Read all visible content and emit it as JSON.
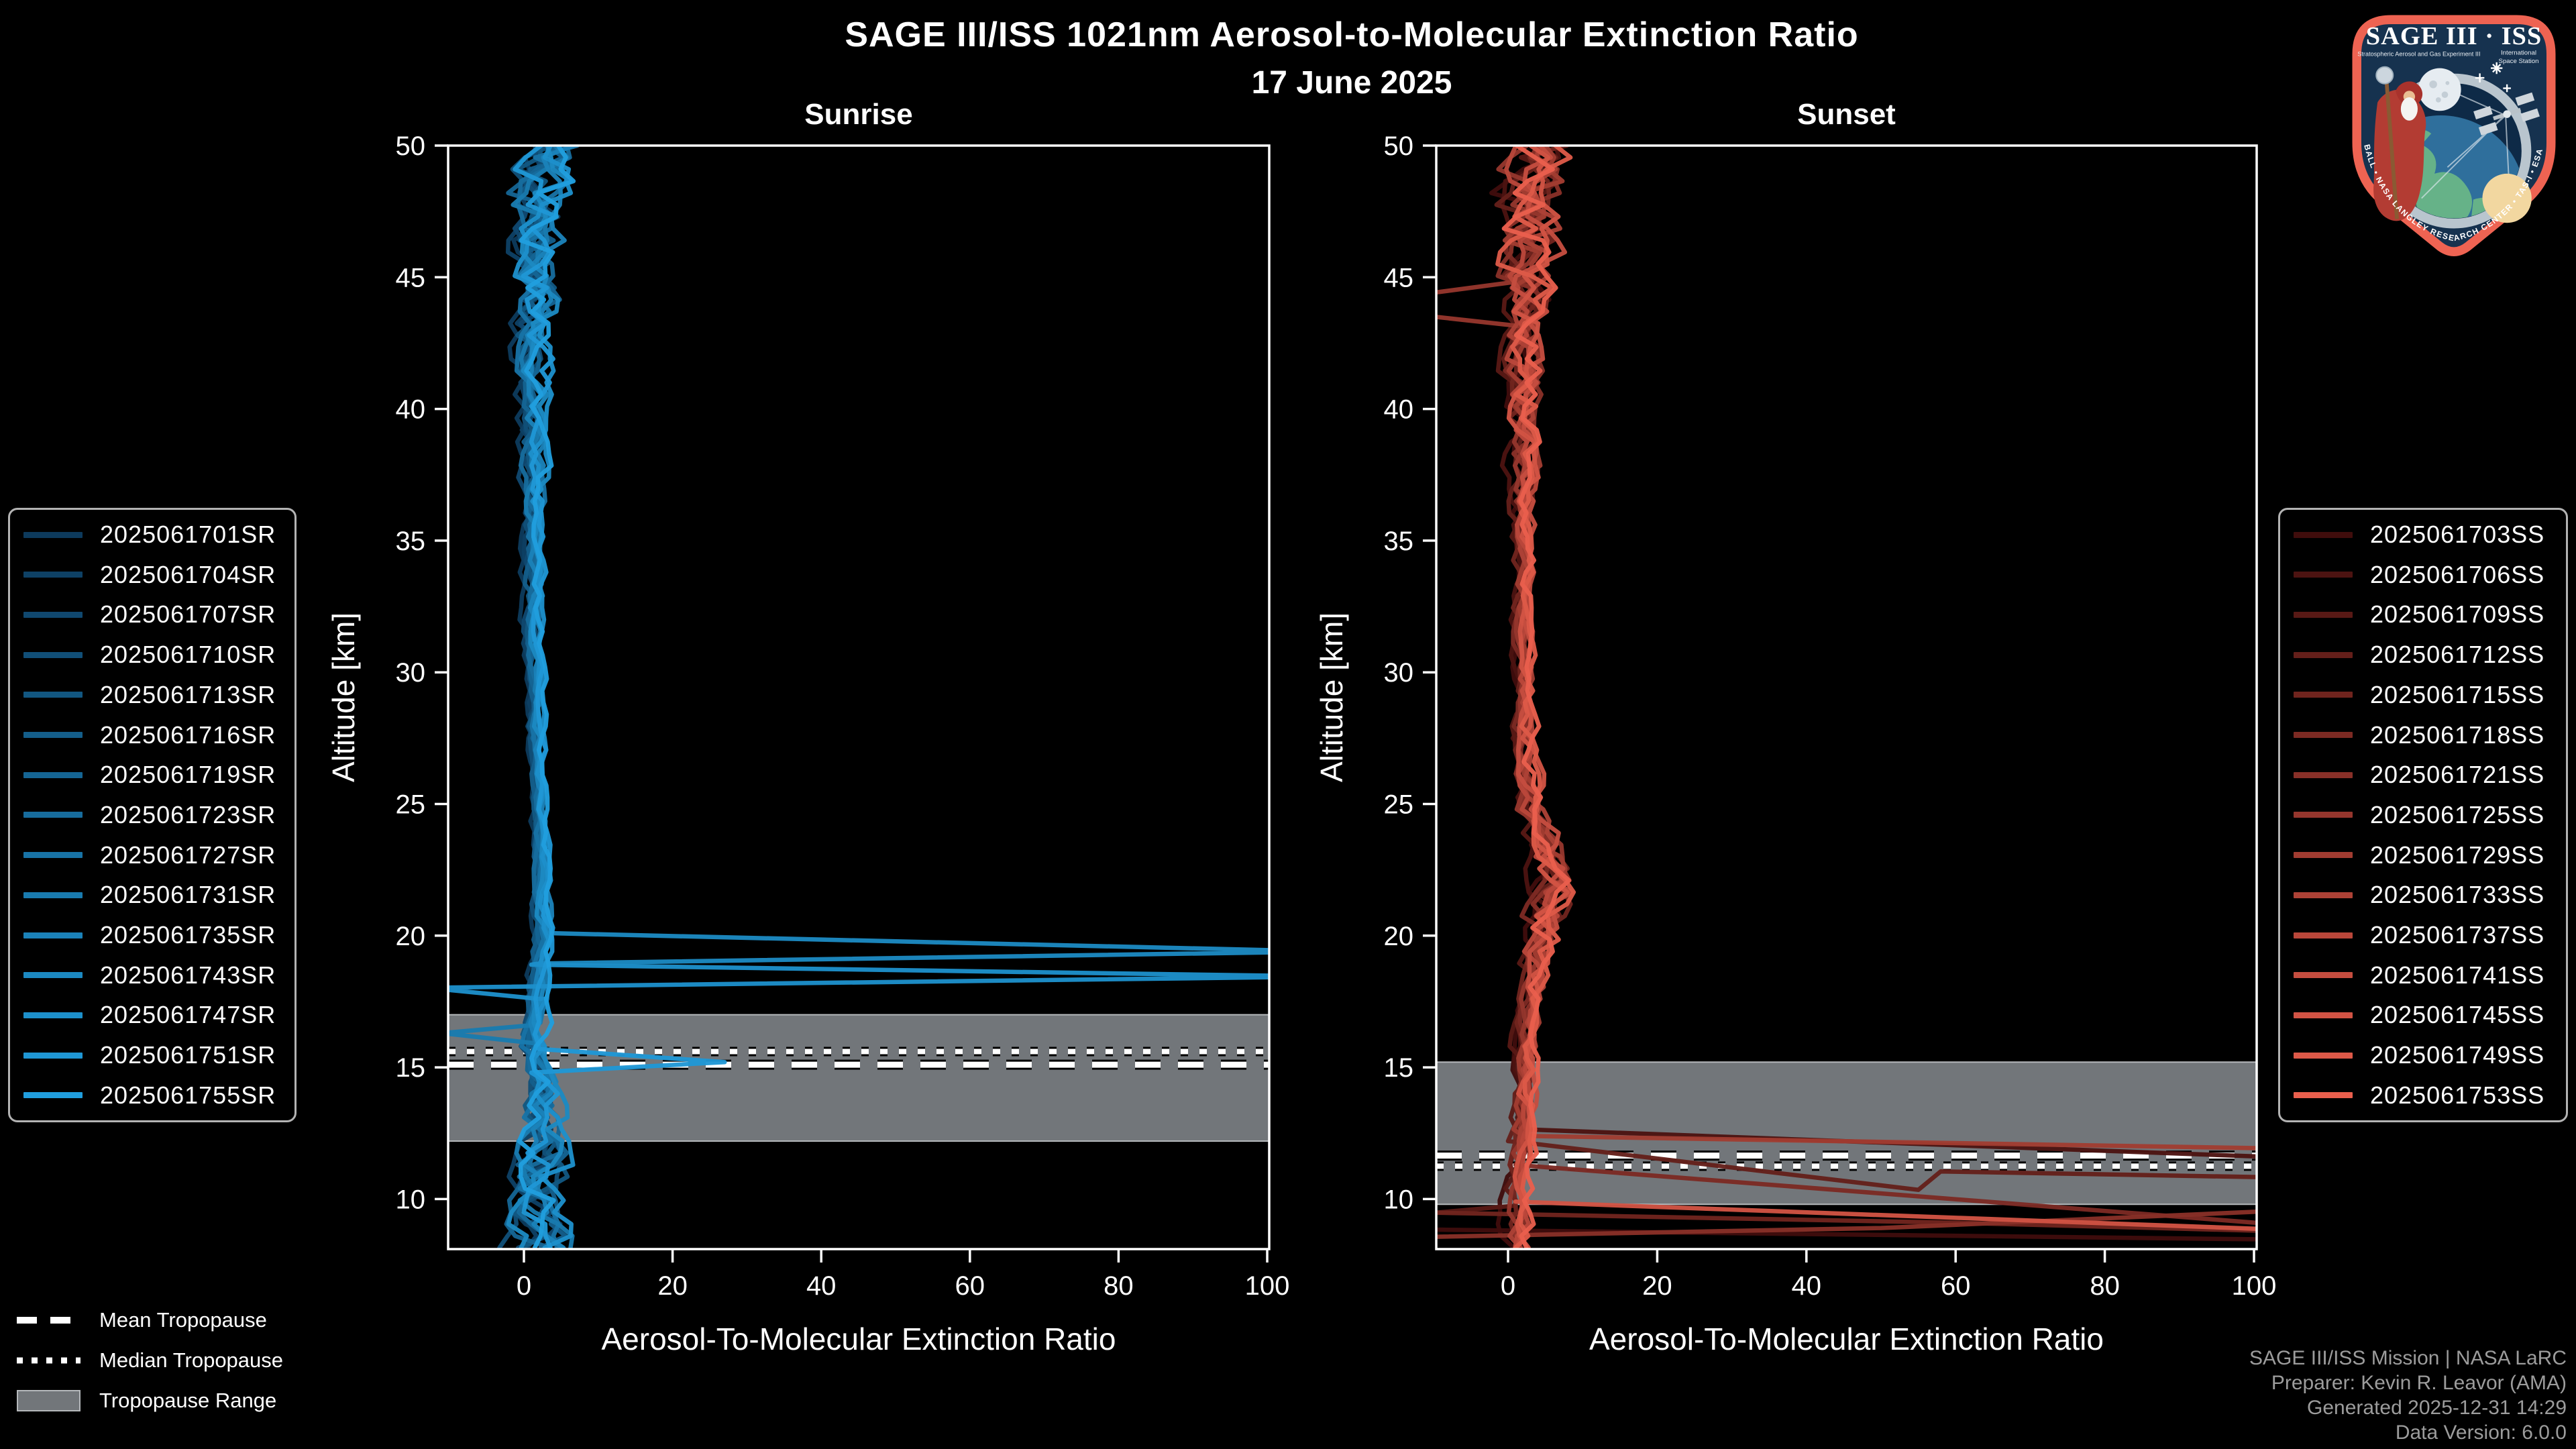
{
  "title": "SAGE III/ISS 1021nm Aerosol-to-Molecular Extinction Ratio",
  "subtitle": "17 June 2025",
  "logo": {
    "title": "SAGE III · ISS",
    "subtitle_left": "Stratospheric Aerosol and Gas Experiment III",
    "subtitle_right_line1": "International",
    "subtitle_right_line2": "Space Station",
    "rim_text": "BALL • NASA LANGLEY RESEARCH CENTER • TAS-I • ESA"
  },
  "tropopause_legend": {
    "mean_label": "Mean Tropopause",
    "median_label": "Median Tropopause",
    "range_label": "Tropopause Range"
  },
  "footer": {
    "line1": "SAGE III/ISS Mission | NASA LaRC",
    "line2": "Preparer: Kevin R. Leavor (AMA)",
    "line3": "Generated 2025-12-31 14:29",
    "line4": "Data Version: 6.0.0"
  },
  "colors": {
    "background": "#000000",
    "axis": "#ffffff",
    "tropopause_band": "#72767a",
    "tropopause_band_edge": "#b5b8bb",
    "tropopause_line": "#ffffff",
    "footer_text": "#9c9c9c",
    "legend_border": "#b3b3b3"
  },
  "chart_data": {
    "type": "line",
    "xlabel": "Aerosol-To-Molecular Extinction Ratio",
    "ylabel": "Altitude [km]",
    "xticks": [
      0,
      20,
      40,
      60,
      80,
      100
    ],
    "yticks": [
      10,
      15,
      20,
      25,
      30,
      35,
      40,
      45,
      50
    ],
    "xlim": [
      -10.2,
      100.3
    ],
    "ylim": [
      8.1,
      50
    ],
    "grid": false,
    "panels": [
      {
        "id": "sunrise",
        "title": "Sunrise",
        "tropopause": {
          "mean_km": 15.1,
          "median_km": 15.6,
          "range_km": [
            12.2,
            17.0
          ]
        },
        "series": [
          {
            "name": "2025061701SR",
            "color": "#0d3a5c"
          },
          {
            "name": "2025061704SR",
            "color": "#0e4165"
          },
          {
            "name": "2025061707SR",
            "color": "#10486f"
          },
          {
            "name": "2025061710SR",
            "color": "#114f78"
          },
          {
            "name": "2025061713SR",
            "color": "#125781"
          },
          {
            "name": "2025061716SR",
            "color": "#145e8a"
          },
          {
            "name": "2025061719SR",
            "color": "#156594"
          },
          {
            "name": "2025061723SR",
            "color": "#176c9d"
          },
          {
            "name": "2025061727SR",
            "color": "#1873a6"
          },
          {
            "name": "2025061731SR",
            "color": "#197baf"
          },
          {
            "name": "2025061735SR",
            "color": "#1b82b9"
          },
          {
            "name": "2025061743SR",
            "color": "#1c89c2"
          },
          {
            "name": "2025061747SR",
            "color": "#1d90cb"
          },
          {
            "name": "2025061751SR",
            "color": "#1f97d5"
          },
          {
            "name": "2025061755SR",
            "color": "#209ede"
          }
        ],
        "profile": {
          "center": [
            [
              8,
              2
            ],
            [
              12,
              2
            ],
            [
              14,
              2
            ],
            [
              16,
              1.5
            ],
            [
              18,
              2
            ],
            [
              20,
              2.6
            ],
            [
              22,
              2.2
            ],
            [
              25,
              2
            ],
            [
              30,
              1.3
            ],
            [
              35,
              1.2
            ],
            [
              40,
              1.3
            ],
            [
              44,
              1.6
            ],
            [
              47,
              2
            ],
            [
              50,
              2
            ]
          ],
          "amp": [
            [
              8,
              4.2
            ],
            [
              11,
              3.6
            ],
            [
              13,
              3.1
            ],
            [
              15,
              1.8
            ],
            [
              17,
              1.2
            ],
            [
              20,
              1.0
            ],
            [
              25,
              0.8
            ],
            [
              30,
              0.8
            ],
            [
              35,
              1.0
            ],
            [
              40,
              1.8
            ],
            [
              44,
              3.0
            ],
            [
              47,
              4.0
            ],
            [
              50,
              4.6
            ]
          ]
        },
        "features": [
          {
            "series": 11,
            "points": [
              [
                3,
                20.1
              ],
              [
                108,
                19.4
              ],
              [
                4,
                18.95
              ]
            ]
          },
          {
            "series": 12,
            "points": [
              [
                1,
                18.9
              ],
              [
                108,
                18.45
              ],
              [
                -13,
                18.02
              ],
              [
                2,
                17.6
              ]
            ]
          },
          {
            "series": 13,
            "points": [
              [
                2,
                15.7
              ],
              [
                27,
                15.2
              ],
              [
                1,
                14.8
              ]
            ]
          },
          {
            "series": 9,
            "points": [
              [
                1,
                16.6
              ],
              [
                -11,
                16.3
              ],
              [
                2,
                15.9
              ]
            ]
          }
        ]
      },
      {
        "id": "sunset",
        "title": "Sunset",
        "tropopause": {
          "mean_km": 11.65,
          "median_km": 11.25,
          "range_km": [
            9.8,
            15.2
          ]
        },
        "series": [
          {
            "name": "2025061703SS",
            "color": "#400d0c"
          },
          {
            "name": "2025061706SS",
            "color": "#4c1311"
          },
          {
            "name": "2025061709SS",
            "color": "#581915"
          },
          {
            "name": "2025061712SS",
            "color": "#641f1a"
          },
          {
            "name": "2025061715SS",
            "color": "#70241e"
          },
          {
            "name": "2025061718SS",
            "color": "#7c2a23"
          },
          {
            "name": "2025061721SS",
            "color": "#883028"
          },
          {
            "name": "2025061725SS",
            "color": "#95362d"
          },
          {
            "name": "2025061729SS",
            "color": "#a13c31"
          },
          {
            "name": "2025061733SS",
            "color": "#ad4236"
          },
          {
            "name": "2025061737SS",
            "color": "#b9473a"
          },
          {
            "name": "2025061741SS",
            "color": "#c54d3f"
          },
          {
            "name": "2025061745SS",
            "color": "#d15344"
          },
          {
            "name": "2025061749SS",
            "color": "#dd5948"
          },
          {
            "name": "2025061753SS",
            "color": "#e95f4d"
          }
        ],
        "profile": {
          "center": [
            [
              8,
              1
            ],
            [
              10,
              1.2
            ],
            [
              12,
              1.6
            ],
            [
              14,
              2
            ],
            [
              16,
              2.5
            ],
            [
              18,
              3.2
            ],
            [
              20,
              4.5
            ],
            [
              21.5,
              6.2
            ],
            [
              23,
              5.5
            ],
            [
              25,
              3
            ],
            [
              27,
              2.2
            ],
            [
              30,
              2
            ],
            [
              35,
              2
            ],
            [
              40,
              2.2
            ],
            [
              44,
              2.6
            ],
            [
              47,
              3
            ],
            [
              50,
              3
            ]
          ],
          "amp": [
            [
              8,
              1.6
            ],
            [
              12,
              1.3
            ],
            [
              15,
              1.2
            ],
            [
              18,
              1.5
            ],
            [
              20,
              2.4
            ],
            [
              22,
              3.0
            ],
            [
              24,
              2.4
            ],
            [
              27,
              1.4
            ],
            [
              30,
              1.0
            ],
            [
              35,
              1.2
            ],
            [
              40,
              2.4
            ],
            [
              44,
              3.4
            ],
            [
              47,
              4.4
            ],
            [
              50,
              5.0
            ]
          ]
        },
        "features": [
          {
            "series": 1,
            "points": [
              [
                2,
                12.65
              ],
              [
                107,
                11.55
              ]
            ],
            "end": true
          },
          {
            "series": 3,
            "points": [
              [
                2,
                12.15
              ],
              [
                55,
                10.35
              ],
              [
                58,
                11.05
              ],
              [
                107,
                10.8
              ]
            ],
            "end": true
          },
          {
            "series": 5,
            "points": [
              [
                1,
                11.3
              ],
              [
                107,
                8.95
              ]
            ],
            "end": true
          },
          {
            "series": 8,
            "points": [
              [
                2,
                12.4
              ],
              [
                107,
                11.9
              ]
            ],
            "end": true
          },
          {
            "series": 2,
            "points": [
              [
                1,
                9.75
              ],
              [
                -13,
                9.4
              ]
            ],
            "end": true
          },
          {
            "series": 0,
            "points": [
              [
                -13,
                8.85
              ],
              [
                107,
                8.45
              ]
            ],
            "detach": true
          },
          {
            "series": 4,
            "points": [
              [
                -13,
                9.5
              ],
              [
                60,
                9.1
              ],
              [
                107,
                8.75
              ]
            ],
            "detach": true
          },
          {
            "series": 6,
            "points": [
              [
                -13,
                8.55
              ],
              [
                50,
                8.9
              ],
              [
                107,
                9.6
              ]
            ],
            "detach": true
          },
          {
            "series": 12,
            "points": [
              [
                1,
                9.9
              ],
              [
                107,
                8.8
              ]
            ],
            "detach": true
          },
          {
            "series": 7,
            "points": [
              [
                3,
                44.9
              ],
              [
                -13,
                44.3
              ],
              [
                -13,
                43.6
              ],
              [
                3,
                43.1
              ]
            ]
          }
        ]
      }
    ]
  }
}
